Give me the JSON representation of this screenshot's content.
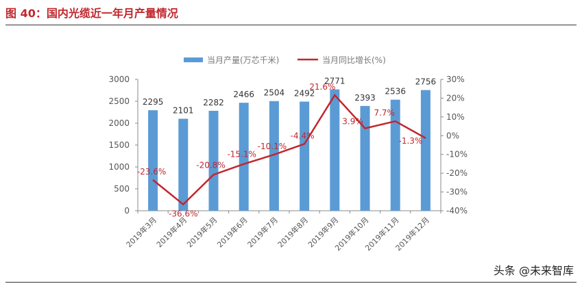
{
  "title": "图 40：国内光缆近一年月产量情况",
  "watermark": "头条 @未来智库",
  "chart_data": {
    "type": "bar+line",
    "categories": [
      "2019年3月",
      "2019年4月",
      "2019年5月",
      "2019年6月",
      "2019年7月",
      "2019年8月",
      "2019年9月",
      "2019年10月",
      "2019年11月",
      "2019年12月"
    ],
    "series": [
      {
        "name": "当月产量(万芯千米)",
        "type": "bar",
        "axis": "left",
        "color": "#5b9bd5",
        "values": [
          2295,
          2101,
          2282,
          2466,
          2504,
          2492,
          2771,
          2393,
          2536,
          2756
        ],
        "labels": [
          "2295",
          "2101",
          "2282",
          "2466",
          "2504",
          "2492",
          "2771",
          "2393",
          "2536",
          "2756"
        ]
      },
      {
        "name": "当月同比增长(%)",
        "type": "line",
        "axis": "right",
        "color": "#c0272d",
        "values": [
          -23.6,
          -36.6,
          -20.8,
          -15.1,
          -10.1,
          -4.4,
          21.6,
          3.9,
          7.7,
          -1.3
        ],
        "labels": [
          "-23.6%",
          "-36.6%",
          "-20.8%",
          "-15.1%",
          "-10.1%",
          "-4.4%",
          "21.6%",
          "3.9%",
          "7.7%",
          "-1.3%"
        ]
      }
    ],
    "yleft": {
      "lim": [
        0,
        3000
      ],
      "ticks": [
        "0",
        "500",
        "1000",
        "1500",
        "2000",
        "2500",
        "3000"
      ]
    },
    "yright": {
      "lim": [
        -40,
        30
      ],
      "ticks": [
        "-40%",
        "-30%",
        "-20%",
        "-10%",
        "0%",
        "10%",
        "20%",
        "30%"
      ]
    },
    "legend": "top",
    "grid": false
  }
}
